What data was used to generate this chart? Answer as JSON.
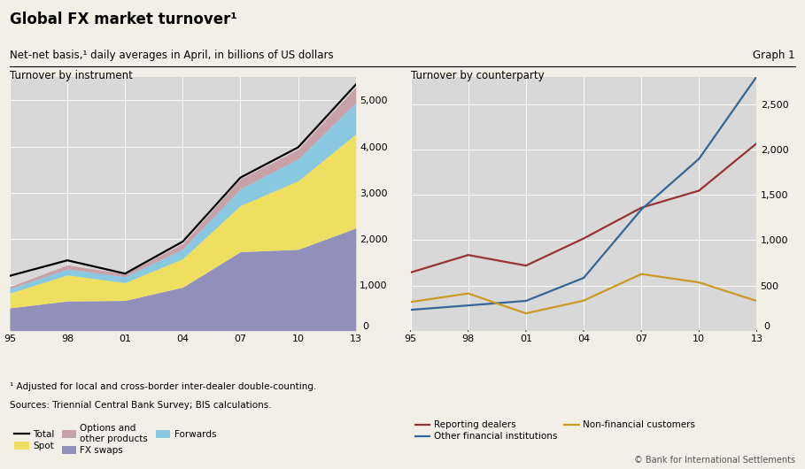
{
  "title": "Global FX market turnover¹",
  "subtitle": "Net-net basis,¹ daily averages in April, in billions of US dollars",
  "graph_label": "Graph 1",
  "footnote1": "¹ Adjusted for local and cross-border inter-dealer double-counting.",
  "footnote2": "Sources: Triennial Central Bank Survey; BIS calculations.",
  "copyright": "© Bank for International Settlements",
  "x_labels": [
    "95",
    "98",
    "01",
    "04",
    "07",
    "10",
    "13"
  ],
  "left_title": "Turnover by instrument",
  "fx_swaps": [
    494,
    643,
    656,
    944,
    1714,
    1765,
    2228
  ],
  "spot": [
    320,
    568,
    387,
    621,
    1005,
    1490,
    2046
  ],
  "forwards": [
    97,
    128,
    130,
    209,
    362,
    475,
    680
  ],
  "options": [
    41,
    87,
    60,
    117,
    212,
    207,
    337
  ],
  "total": [
    1190,
    1527,
    1239,
    1934,
    3324,
    3981,
    5345
  ],
  "right_title": "Turnover by counterparty",
  "reporting_dealers": [
    643,
    836,
    719,
    1019,
    1359,
    1548,
    2071
  ],
  "other_financial": [
    230,
    279,
    329,
    583,
    1339,
    1900,
    2809
  ],
  "non_financial_customers": [
    317,
    411,
    191,
    332,
    626,
    533,
    328
  ],
  "left_ylim": [
    0,
    5500
  ],
  "left_yticks": [
    0,
    1000,
    2000,
    3000,
    4000,
    5000
  ],
  "right_ylim": [
    0,
    2800
  ],
  "right_yticks": [
    0,
    500,
    1000,
    1500,
    2000,
    2500
  ],
  "color_fx_swaps": "#9090bb",
  "color_spot": "#eedf60",
  "color_forwards": "#88c8e0",
  "color_options": "#c8a0a8",
  "color_total": "#000000",
  "color_reporting": "#993333",
  "color_other_financial": "#336699",
  "color_non_financial": "#cc9922",
  "fig_bg": "#f2f0e6",
  "plot_bg": "#d8d8d8"
}
